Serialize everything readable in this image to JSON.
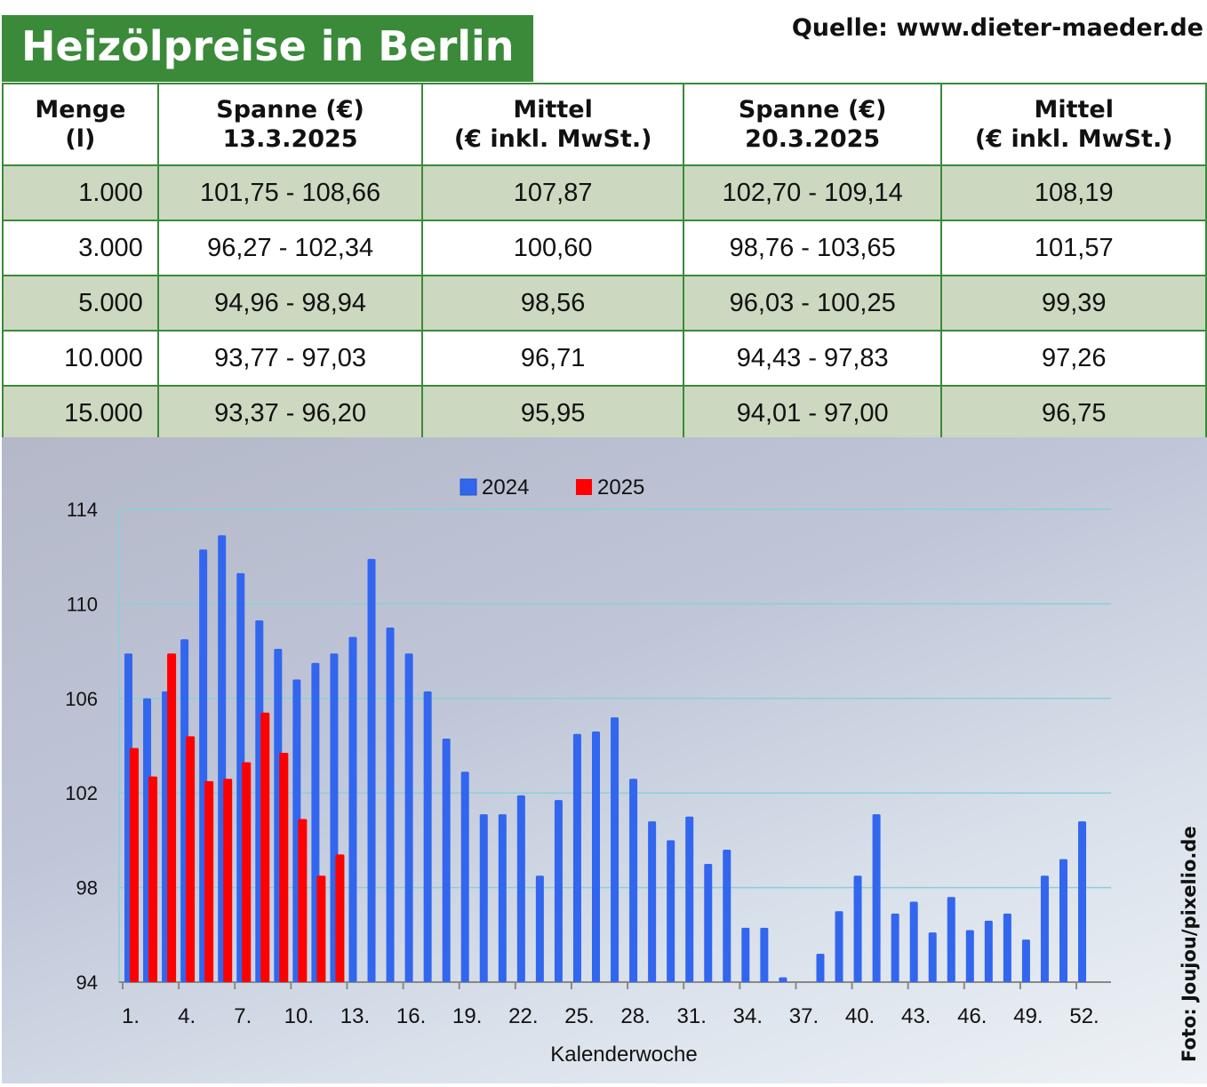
{
  "title": "Heizölpreise in Berlin",
  "source": "Quelle: www.dieter-maeder.de",
  "credit": "Foto: Joujou/pixelio.de",
  "table": {
    "headers": [
      [
        "Menge",
        "(l)"
      ],
      [
        "Spanne (€)",
        "13.3.2025"
      ],
      [
        "Mittel",
        "(€ inkl. MwSt.)"
      ],
      [
        "Spanne (€)",
        "20.3.2025"
      ],
      [
        "Mittel",
        "(€ inkl. MwSt.)"
      ]
    ],
    "rows": [
      [
        "1.000",
        "101,75 - 108,66",
        "107,87",
        "102,70 - 109,14",
        "108,19"
      ],
      [
        "3.000",
        "96,27 - 102,34",
        "100,60",
        "98,76 - 103,65",
        "101,57"
      ],
      [
        "5.000",
        "94,96 - 98,94",
        "98,56",
        "96,03 - 100,25",
        "99,39"
      ],
      [
        "10.000",
        "93,77 - 97,03",
        "96,71",
        "94,43 - 97,83",
        "97,26"
      ],
      [
        "15.000",
        "93,37 - 96,20",
        "95,95",
        "94,01 - 97,00",
        "96,75"
      ]
    ]
  },
  "chart_data": {
    "type": "bar",
    "xlabel": "Kalenderwoche",
    "ylabel": "",
    "ylim": [
      94,
      114
    ],
    "yticks": [
      "94",
      "98",
      "102",
      "106",
      "110",
      "114"
    ],
    "xticks": [
      "1.",
      "4.",
      "7.",
      "10.",
      "13.",
      "16.",
      "19.",
      "22.",
      "25.",
      "28.",
      "31.",
      "34.",
      "37.",
      "40.",
      "43.",
      "46.",
      "49.",
      "52."
    ],
    "grid": true,
    "legend": "top",
    "colors": {
      "2024": "#3366ee",
      "2025": "#ff0000"
    },
    "series": [
      {
        "name": "2024",
        "values": [
          107.9,
          106.0,
          106.3,
          108.5,
          112.3,
          112.9,
          111.3,
          109.3,
          108.1,
          106.8,
          107.5,
          107.9,
          108.6,
          111.9,
          109.0,
          107.9,
          106.3,
          104.3,
          102.9,
          101.1,
          101.1,
          101.9,
          98.5,
          101.7,
          104.5,
          104.6,
          105.2,
          102.6,
          100.8,
          100.0,
          101.0,
          99.0,
          99.6,
          96.3,
          96.3,
          94.2,
          null,
          95.2,
          97.0,
          98.5,
          101.1,
          96.9,
          97.4,
          96.1,
          97.6,
          96.2,
          96.6,
          96.9,
          95.8,
          98.5,
          99.2,
          100.8
        ]
      },
      {
        "name": "2025",
        "values": [
          103.9,
          102.7,
          107.9,
          104.4,
          102.5,
          102.6,
          103.3,
          105.4,
          103.7,
          100.9,
          98.5,
          99.4
        ]
      }
    ]
  }
}
